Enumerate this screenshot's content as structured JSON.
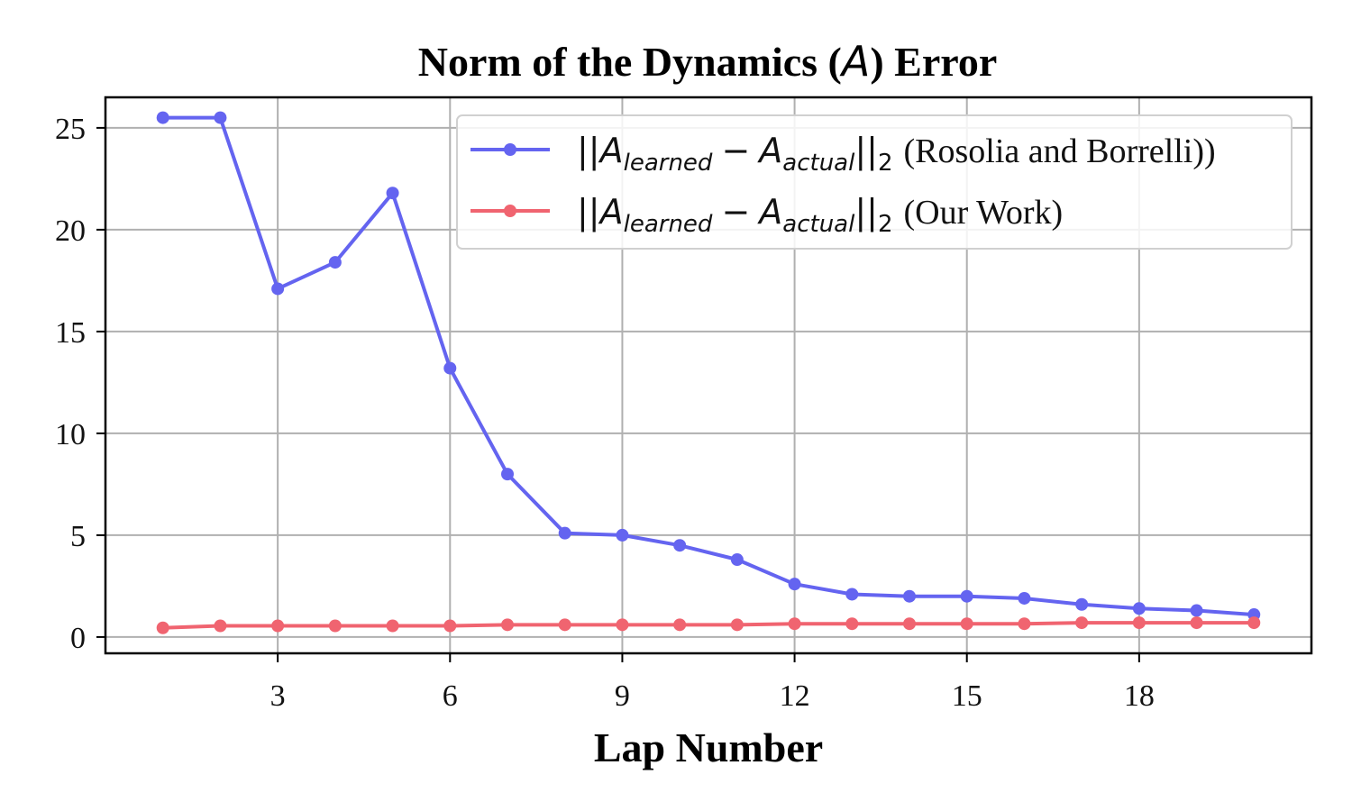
{
  "chart_data": {
    "type": "line",
    "title_prefix": "Norm of the Dynamics (",
    "title_symbol": "A",
    "title_suffix": ") Error",
    "xlabel": "Lap Number",
    "ylabel": "",
    "xlim": [
      0.0,
      21.0
    ],
    "ylim": [
      -0.8,
      26.5
    ],
    "xticks": [
      3,
      6,
      9,
      12,
      15,
      18
    ],
    "yticks": [
      0,
      5,
      10,
      15,
      20,
      25
    ],
    "grid": true,
    "legend_placement": "top-right",
    "legend_math": {
      "open": "||",
      "base": "A",
      "sub1": "learned",
      "minus": "−",
      "sub2": "actual",
      "close": "||",
      "norm_sub": "2"
    },
    "x": [
      1,
      2,
      3,
      4,
      5,
      6,
      7,
      8,
      9,
      10,
      11,
      12,
      13,
      14,
      15,
      16,
      17,
      18,
      19,
      20
    ],
    "series": [
      {
        "name": "(Rosolia and Borrelli))",
        "color": "#6464f0",
        "values": [
          25.5,
          25.5,
          17.1,
          18.4,
          21.8,
          13.2,
          8.0,
          5.1,
          5.0,
          4.5,
          3.8,
          2.6,
          2.1,
          2.0,
          2.0,
          1.9,
          1.6,
          1.4,
          1.3,
          1.1
        ]
      },
      {
        "name": "(Our Work)",
        "color": "#f06470",
        "values": [
          0.45,
          0.55,
          0.55,
          0.55,
          0.55,
          0.55,
          0.6,
          0.6,
          0.6,
          0.6,
          0.6,
          0.65,
          0.65,
          0.65,
          0.65,
          0.65,
          0.7,
          0.7,
          0.7,
          0.7
        ]
      }
    ]
  }
}
